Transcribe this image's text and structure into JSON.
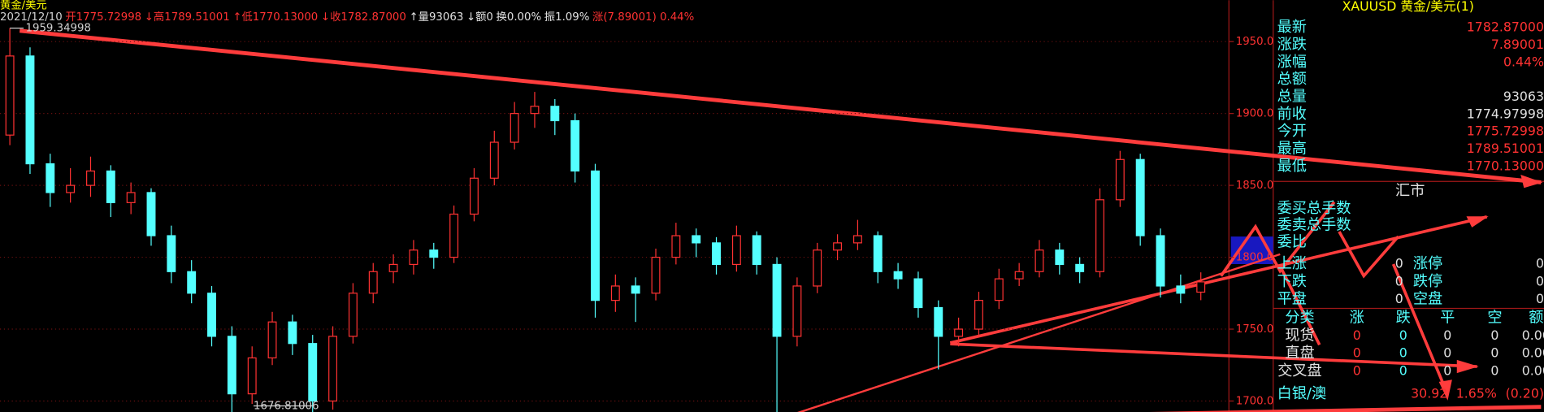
{
  "window_title": "黄金/美元",
  "header": [
    {
      "text": "2021/12/10",
      "color": "#d0d0d0"
    },
    {
      "text": "开1775.72998",
      "color": "#ff3232"
    },
    {
      "text": "↓高1789.51001",
      "color": "#ff3232"
    },
    {
      "text": "↑低1770.13000",
      "color": "#ff3232"
    },
    {
      "text": "↓收1782.87000",
      "color": "#ff3232"
    },
    {
      "text": "↑量93063",
      "color": "#e0e0e0"
    },
    {
      "text": "↓额0",
      "color": "#e0e0e0"
    },
    {
      "text": "换0.00%",
      "color": "#e0e0e0"
    },
    {
      "text": "振1.09%",
      "color": "#e0e0e0"
    },
    {
      "text": "涨(7.89001) 0.44%",
      "color": "#ff3232"
    }
  ],
  "chart_data": {
    "type": "candlestick",
    "up_color": "#ff3232",
    "down_color": "#54ffff",
    "ylim": [
      1692.5,
      1978.8
    ],
    "yticks": [
      {
        "value": 1700,
        "label": "1700.0"
      },
      {
        "value": 1750,
        "label": "1750.0"
      },
      {
        "value": 1800,
        "label": "1800.0"
      },
      {
        "value": 1850,
        "label": "1850.0"
      },
      {
        "value": 1900,
        "label": "1900.0"
      },
      {
        "value": 1950,
        "label": "1950.0"
      }
    ],
    "candles": [
      [
        1885,
        1959.35,
        1878,
        1940
      ],
      [
        1940,
        1946,
        1858,
        1865
      ],
      [
        1865,
        1872,
        1835,
        1845
      ],
      [
        1845,
        1862,
        1838,
        1850
      ],
      [
        1850,
        1870,
        1842,
        1860
      ],
      [
        1860,
        1864,
        1828,
        1838
      ],
      [
        1838,
        1852,
        1830,
        1845
      ],
      [
        1845,
        1848,
        1808,
        1815
      ],
      [
        1815,
        1822,
        1782,
        1790
      ],
      [
        1790,
        1798,
        1768,
        1775
      ],
      [
        1775,
        1780,
        1738,
        1745
      ],
      [
        1745,
        1752,
        1685,
        1705
      ],
      [
        1705,
        1738,
        1698,
        1730
      ],
      [
        1730,
        1762,
        1725,
        1755
      ],
      [
        1755,
        1760,
        1732,
        1740
      ],
      [
        1740,
        1746,
        1676.81,
        1700
      ],
      [
        1700,
        1752,
        1694,
        1745
      ],
      [
        1745,
        1782,
        1740,
        1775
      ],
      [
        1775,
        1796,
        1768,
        1790
      ],
      [
        1790,
        1802,
        1782,
        1795
      ],
      [
        1795,
        1812,
        1788,
        1805
      ],
      [
        1805,
        1810,
        1792,
        1800
      ],
      [
        1800,
        1836,
        1796,
        1830
      ],
      [
        1830,
        1862,
        1825,
        1855
      ],
      [
        1855,
        1888,
        1850,
        1880
      ],
      [
        1880,
        1908,
        1875,
        1900
      ],
      [
        1900,
        1915,
        1890,
        1905
      ],
      [
        1905,
        1910,
        1885,
        1895
      ],
      [
        1895,
        1900,
        1852,
        1860
      ],
      [
        1860,
        1865,
        1758,
        1770
      ],
      [
        1770,
        1788,
        1762,
        1780
      ],
      [
        1780,
        1786,
        1755,
        1775
      ],
      [
        1775,
        1806,
        1770,
        1800
      ],
      [
        1800,
        1824,
        1795,
        1815
      ],
      [
        1815,
        1820,
        1800,
        1810
      ],
      [
        1810,
        1814,
        1788,
        1795
      ],
      [
        1795,
        1822,
        1790,
        1815
      ],
      [
        1815,
        1818,
        1788,
        1795
      ],
      [
        1795,
        1800,
        1690,
        1745
      ],
      [
        1745,
        1786,
        1738,
        1780
      ],
      [
        1780,
        1810,
        1775,
        1805
      ],
      [
        1805,
        1816,
        1798,
        1810
      ],
      [
        1810,
        1826,
        1805,
        1815
      ],
      [
        1815,
        1818,
        1782,
        1790
      ],
      [
        1790,
        1796,
        1778,
        1785
      ],
      [
        1785,
        1790,
        1758,
        1765
      ],
      [
        1765,
        1770,
        1722,
        1745
      ],
      [
        1745,
        1758,
        1738,
        1750
      ],
      [
        1750,
        1776,
        1745,
        1770
      ],
      [
        1770,
        1792,
        1764,
        1785
      ],
      [
        1785,
        1796,
        1780,
        1790
      ],
      [
        1790,
        1812,
        1786,
        1805
      ],
      [
        1805,
        1810,
        1788,
        1795
      ],
      [
        1795,
        1800,
        1782,
        1790
      ],
      [
        1790,
        1848,
        1786,
        1840
      ],
      [
        1840,
        1874,
        1835,
        1868
      ],
      [
        1868,
        1872,
        1808,
        1815
      ],
      [
        1815,
        1820,
        1772,
        1780
      ],
      [
        1780,
        1788,
        1768,
        1775
      ],
      [
        1775.73,
        1789.51,
        1770.13,
        1782.87
      ]
    ],
    "annotations": [
      "1959.34998",
      "1676.81006"
    ]
  },
  "panel": {
    "title": "XAUUSD 黄金/美元(1)",
    "quote": [
      {
        "label": "最新",
        "value": "1782.87000",
        "color": "#ff3232"
      },
      {
        "label": "涨跌",
        "value": "7.89001",
        "color": "#ff3232"
      },
      {
        "label": "涨幅",
        "value": "0.44%",
        "color": "#ff3232"
      },
      {
        "label": "总额",
        "value": "",
        "color": "#e0e0e0"
      },
      {
        "label": "总量",
        "value": "93063",
        "color": "#e0e0e0"
      },
      {
        "label": "前收",
        "value": "1774.97998",
        "color": "#e0e0e0"
      },
      {
        "label": "今开",
        "value": "1775.72998",
        "color": "#ff3232"
      },
      {
        "label": "最高",
        "value": "1789.51001",
        "color": "#ff3232"
      },
      {
        "label": "最低",
        "value": "1770.13000",
        "color": "#ff3232"
      }
    ],
    "section": "汇市",
    "orders": [
      "委买总手数",
      "委卖总手数",
      "委比"
    ],
    "breadth": [
      {
        "label": "上涨",
        "value": "0",
        "label2": "涨停",
        "value2": "0"
      },
      {
        "label": "下跌",
        "value": "0",
        "label2": "跌停",
        "value2": "0"
      },
      {
        "label": "平盘",
        "value": "0",
        "label2": "空盘",
        "value2": "0"
      }
    ],
    "table": {
      "header": [
        "分类",
        "涨",
        "跌",
        "平",
        "空",
        "额"
      ],
      "rows": [
        [
          "现货",
          "0",
          "0",
          "0",
          "0",
          "0.00"
        ],
        [
          "直盘",
          "0",
          "0",
          "0",
          "0",
          "0.00"
        ],
        [
          "交叉盘",
          "0",
          "0",
          "0",
          "0",
          "0.00"
        ]
      ]
    },
    "footer": [
      [
        "白银/澳",
        "30.92",
        "1.65%",
        "(0.20)"
      ]
    ]
  }
}
